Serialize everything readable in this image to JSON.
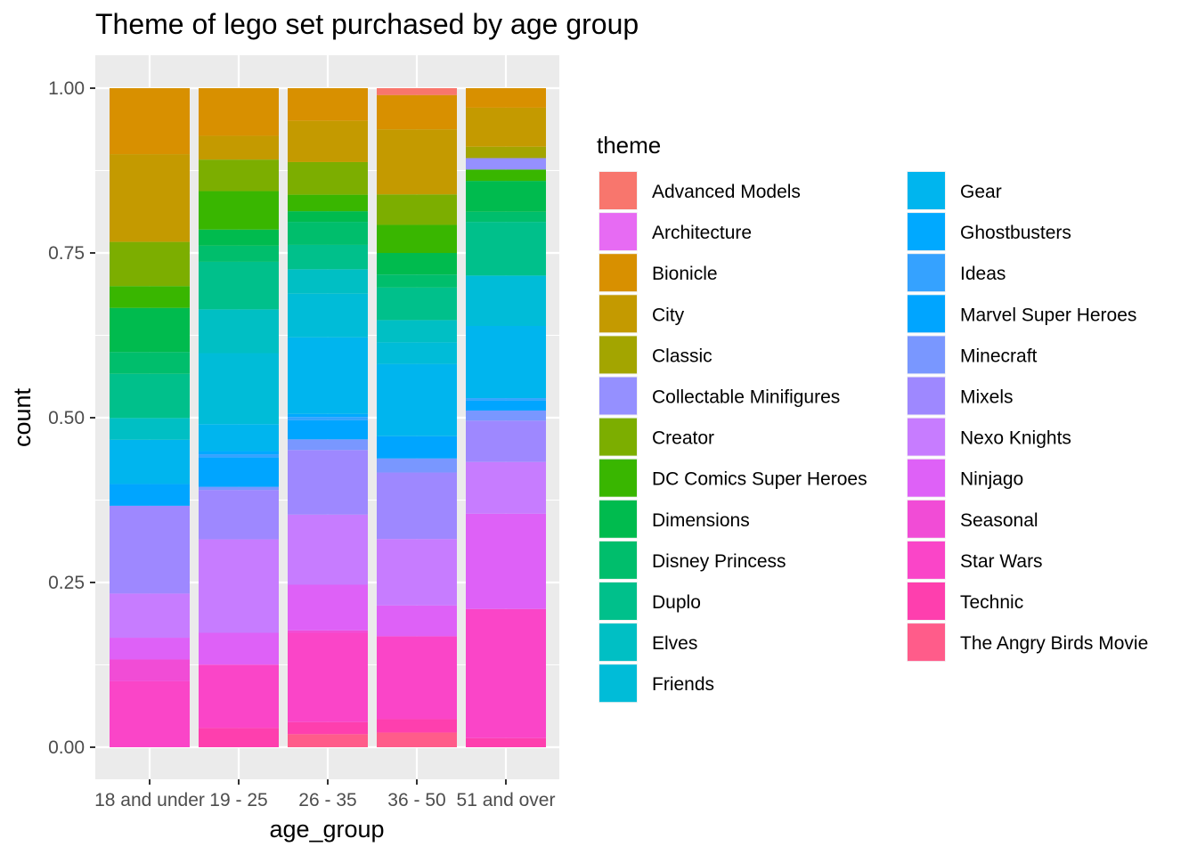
{
  "chart_data": {
    "type": "bar",
    "stacked": "fill",
    "title": "Theme of lego set purchased by age group",
    "xlabel": "age_group",
    "ylabel": "count",
    "ylim": [
      0,
      1
    ],
    "y_ticks": [
      "0.00",
      "0.25",
      "0.50",
      "0.75",
      "1.00"
    ],
    "grid": true,
    "legend_position": "right",
    "legend_title": "theme",
    "categories": [
      "18 and under",
      "19 - 25",
      "26 - 35",
      "36 - 50",
      "51 and over"
    ],
    "series": [
      {
        "name": "Advanced Models",
        "color": "#F8766D",
        "values": [
          0,
          0,
          0,
          0.01,
          0
        ]
      },
      {
        "name": "Architecture",
        "color": "#E76BF3",
        "values": [
          0,
          0,
          0,
          0,
          0
        ]
      },
      {
        "name": "Bionicle",
        "color": "#D89000",
        "values": [
          0.1,
          0.068,
          0.0475,
          0.05,
          0.03
        ]
      },
      {
        "name": "City",
        "color": "#C49A00",
        "values": [
          0.133,
          0.034,
          0.06,
          0.095,
          0.06
        ]
      },
      {
        "name": "Classic",
        "color": "#A3A500",
        "values": [
          0,
          0,
          0,
          0,
          0.0175
        ]
      },
      {
        "name": "Collectable Minifigures",
        "color": "#9590FF",
        "values": [
          0,
          0,
          0,
          0,
          0.0175
        ]
      },
      {
        "name": "Creator",
        "color": "#7CAE00",
        "values": [
          0.067,
          0.045,
          0.0475,
          0.0445,
          0
        ]
      },
      {
        "name": "DC Comics Super Heroes",
        "color": "#39B600",
        "values": [
          0.033,
          0.055,
          0.024,
          0.041,
          0.0175
        ]
      },
      {
        "name": "Dimensions",
        "color": "#00BB4E",
        "values": [
          0.067,
          0.023,
          0.0155,
          0.0315,
          0.0475
        ]
      },
      {
        "name": "Disney Princess",
        "color": "#00BE6C",
        "values": [
          0.033,
          0.023,
          0.0335,
          0.019,
          0.0155
        ]
      },
      {
        "name": "Duplo",
        "color": "#00C08B",
        "values": [
          0.067,
          0.068,
          0.0355,
          0.0475,
          0.0825
        ]
      },
      {
        "name": "Elves",
        "color": "#00BFC4",
        "values": [
          0.033,
          0.0625,
          0.0355,
          0.0325,
          0
        ]
      },
      {
        "name": "Friends",
        "color": "#00BCD8",
        "values": [
          0,
          0.1015,
          0.0635,
          0.0315,
          0.0775
        ]
      },
      {
        "name": "Gear",
        "color": "#00B5EE",
        "values": [
          0.067,
          0.0385,
          0.1115,
          0.1055,
          0.111
        ]
      },
      {
        "name": "Ghostbusters",
        "color": "#00A9FF",
        "values": [
          0,
          0.0045,
          0.0045,
          0,
          0
        ]
      },
      {
        "name": "Ideas",
        "color": "#35A2FF",
        "values": [
          0,
          0.0045,
          0.0045,
          0,
          0.0035
        ]
      },
      {
        "name": "Marvel Super Heroes",
        "color": "#00A5FF",
        "values": [
          0.033,
          0.042,
          0.028,
          0.0325,
          0.0155
        ]
      },
      {
        "name": "Minecraft",
        "color": "#7997FF",
        "values": [
          0,
          0.0045,
          0.0155,
          0.0205,
          0.0155
        ]
      },
      {
        "name": "Mixels",
        "color": "#9E88FF",
        "values": [
          0.133,
          0.0705,
          0.094,
          0.097,
          0.0635
        ]
      },
      {
        "name": "Nexo Knights",
        "color": "#C77CFF",
        "values": [
          0.067,
          0.1335,
          0.102,
          0.097,
          0.0795
        ]
      },
      {
        "name": "Ninjago",
        "color": "#DE61F7",
        "values": [
          0.033,
          0.0455,
          0.0665,
          0.045,
          0.1465
        ]
      },
      {
        "name": "Seasonal",
        "color": "#F14CD6",
        "values": [
          0.033,
          0,
          0.0035,
          0,
          0
        ]
      },
      {
        "name": "Star Wars",
        "color": "#FA45C8",
        "values": [
          0.1,
          0.0905,
          0.13,
          0.121,
          0.1985
        ]
      },
      {
        "name": "Technic",
        "color": "#FE3FAE",
        "values": [
          0,
          0.0275,
          0.0175,
          0.0195,
          0.014
        ]
      },
      {
        "name": "The Angry Birds Movie",
        "color": "#FF5C8A",
        "values": [
          0,
          0,
          0.019,
          0.0215,
          0
        ]
      }
    ]
  }
}
